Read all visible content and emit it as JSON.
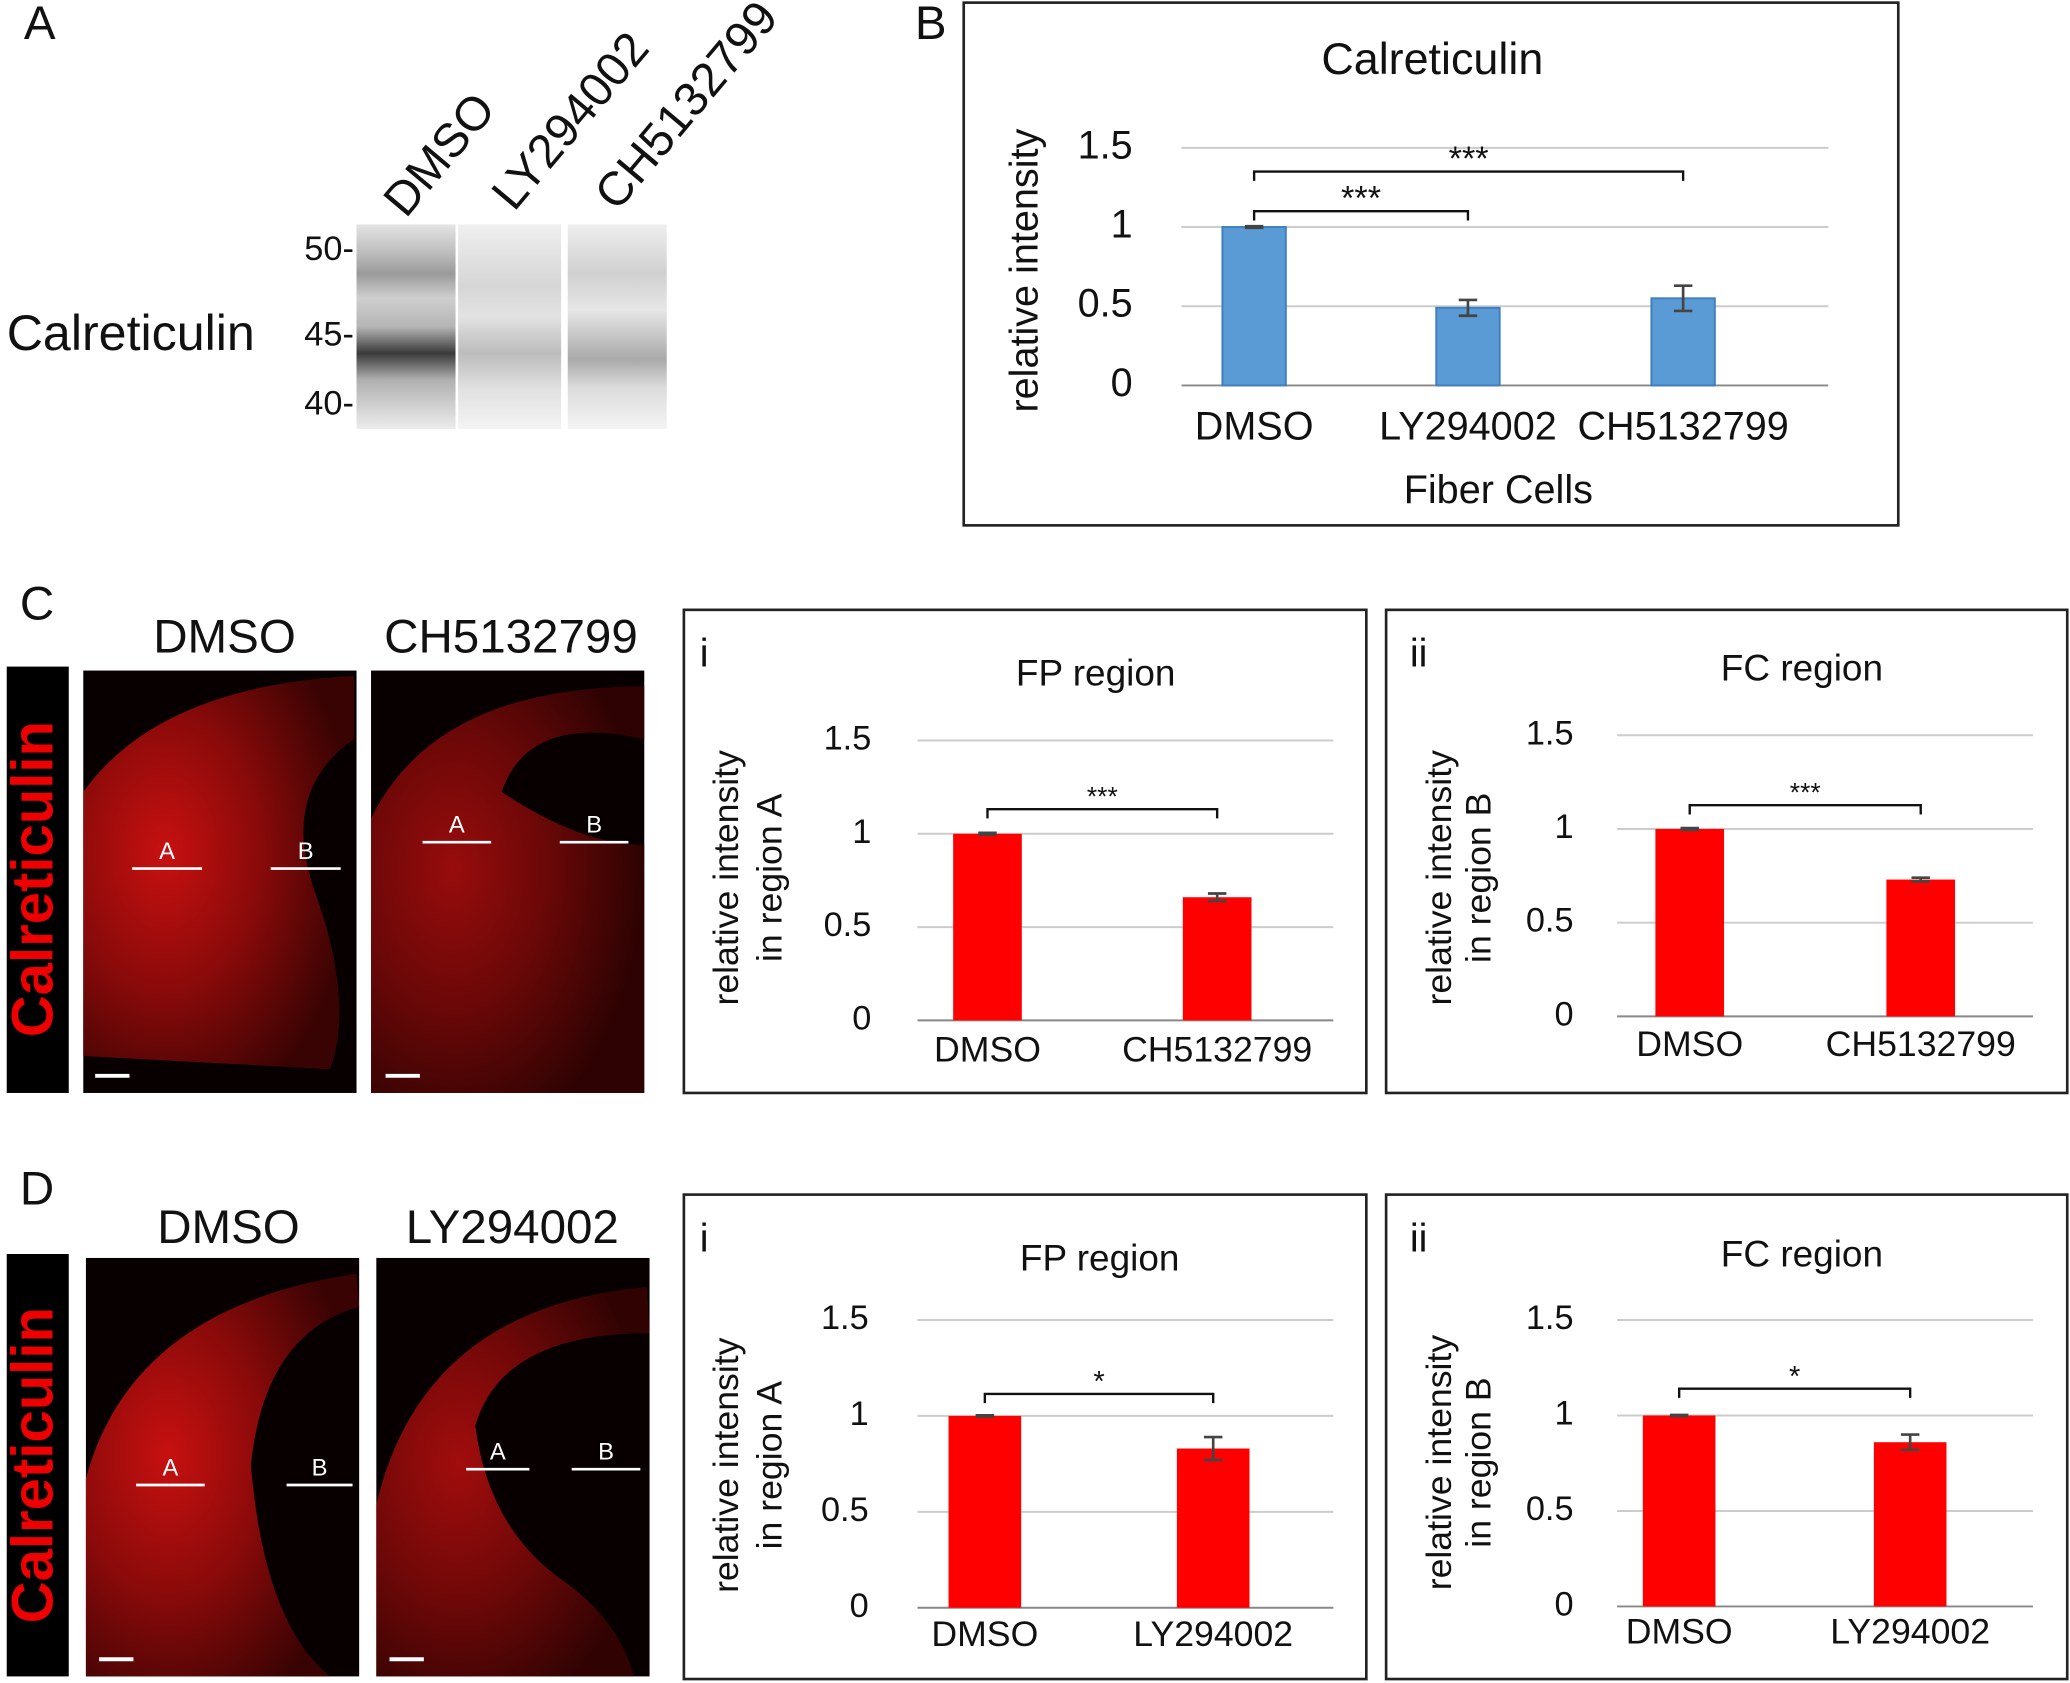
{
  "panel_labels": [
    "A",
    "B",
    "C",
    "D"
  ],
  "blot": {
    "protein": "Calreticulin",
    "lanes": [
      "DMSO",
      "LY294002",
      "CH5132799"
    ],
    "markers": [
      "50-",
      "45-",
      "40-"
    ]
  },
  "micrographs": [
    {
      "label": "Calreticulin",
      "conditions": [
        "DMSO",
        "CH5132799"
      ],
      "regions": [
        [
          "A",
          "B"
        ],
        [
          "A",
          "B"
        ]
      ]
    },
    {
      "label": "Calreticulin",
      "conditions": [
        "DMSO",
        "LY294002"
      ],
      "regions": [
        [
          "A",
          "B"
        ],
        [
          "A",
          "B"
        ]
      ]
    }
  ],
  "chart_data": [
    {
      "type": "bar",
      "title": "Calreticulin",
      "ylabel": "relative intensity",
      "xlabel": "Fiber Cells",
      "categories": [
        "DMSO",
        "LY294002",
        "CH5132799"
      ],
      "values": [
        1,
        0.49,
        0.55
      ],
      "errors": [
        0.005,
        0.05,
        0.08
      ],
      "color": "#5b9bd5",
      "ylim": [
        0,
        1.5
      ],
      "yticks": [
        0,
        0.5,
        1,
        1.5
      ],
      "grid": true,
      "significance": [
        {
          "label": "***",
          "pair": [
            "DMSO",
            "LY294002"
          ]
        },
        {
          "label": "***",
          "pair": [
            "DMSO",
            "CH5132799"
          ]
        }
      ]
    },
    {
      "type": "bar",
      "panel": "i",
      "title": "FP region",
      "ylabel": [
        "relative intensity",
        "in region A"
      ],
      "categories": [
        "DMSO",
        "CH5132799"
      ],
      "values": [
        1,
        0.66
      ],
      "errors": [
        0.005,
        0.02
      ],
      "color": "#ff0000",
      "ylim": [
        0,
        1.5
      ],
      "yticks": [
        0,
        0.5,
        1,
        1.5
      ],
      "grid": true,
      "significance": [
        {
          "label": "***",
          "pair": [
            "DMSO",
            "CH5132799"
          ]
        }
      ]
    },
    {
      "type": "bar",
      "panel": "ii",
      "title": "FC region",
      "ylabel": [
        "relative intensity",
        "in region B"
      ],
      "categories": [
        "DMSO",
        "CH5132799"
      ],
      "values": [
        1,
        0.73
      ],
      "errors": [
        0.005,
        0.01
      ],
      "color": "#ff0000",
      "ylim": [
        0,
        1.5
      ],
      "yticks": [
        0,
        0.5,
        1,
        1.5
      ],
      "grid": true,
      "significance": [
        {
          "label": "***",
          "pair": [
            "DMSO",
            "CH5132799"
          ]
        }
      ]
    },
    {
      "type": "bar",
      "panel": "i",
      "title": "FP region",
      "ylabel": [
        "relative intensity",
        "in region A"
      ],
      "categories": [
        "DMSO",
        "LY294002"
      ],
      "values": [
        1,
        0.83
      ],
      "errors": [
        0.003,
        0.06
      ],
      "color": "#ff0000",
      "ylim": [
        0,
        1.5
      ],
      "yticks": [
        0,
        0.5,
        1,
        1.5
      ],
      "grid": true,
      "significance": [
        {
          "label": "*",
          "pair": [
            "DMSO",
            "LY294002"
          ]
        }
      ]
    },
    {
      "type": "bar",
      "panel": "ii",
      "title": "FC region",
      "ylabel": [
        "relative intensity",
        "in region B"
      ],
      "categories": [
        "DMSO",
        "LY294002"
      ],
      "values": [
        1,
        0.86
      ],
      "errors": [
        0.003,
        0.04
      ],
      "color": "#ff0000",
      "ylim": [
        0,
        1.5
      ],
      "yticks": [
        0,
        0.5,
        1,
        1.5
      ],
      "grid": true,
      "significance": [
        {
          "label": "*",
          "pair": [
            "DMSO",
            "LY294002"
          ]
        }
      ]
    }
  ]
}
